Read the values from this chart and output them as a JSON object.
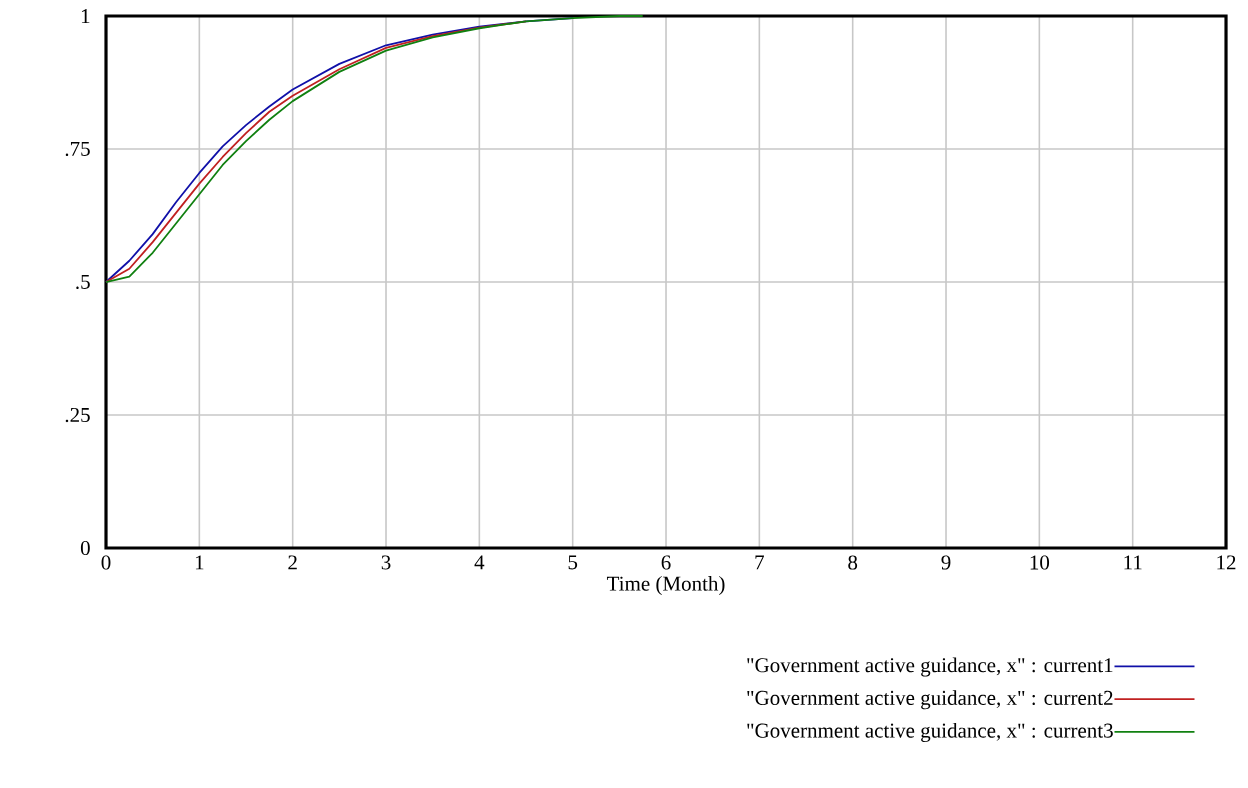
{
  "chart_data": {
    "type": "line",
    "xlabel": "Time (Month)",
    "x": [
      0,
      0.25,
      0.5,
      0.75,
      1,
      1.25,
      1.5,
      1.75,
      2,
      2.5,
      3,
      3.5,
      4,
      4.5,
      5,
      5.5,
      5.75
    ],
    "series": [
      {
        "name": "\"Government active guidance, x\" : current1",
        "color": "#1010a8",
        "values": [
          0.5,
          0.54,
          0.59,
          0.65,
          0.705,
          0.755,
          0.795,
          0.83,
          0.862,
          0.91,
          0.945,
          0.965,
          0.98,
          0.99,
          0.996,
          null,
          null
        ]
      },
      {
        "name": "\"Government active guidance, x\" : current2",
        "color": "#c02020",
        "values": [
          0.5,
          0.525,
          0.575,
          0.63,
          0.685,
          0.735,
          0.78,
          0.82,
          0.85,
          0.9,
          0.94,
          0.962,
          0.978,
          0.99,
          null,
          null,
          null
        ]
      },
      {
        "name": "\"Government active guidance, x\" : current3",
        "color": "#108010",
        "values": [
          0.5,
          0.51,
          0.555,
          0.61,
          0.665,
          0.72,
          0.765,
          0.805,
          0.84,
          0.895,
          0.935,
          0.96,
          0.977,
          0.99,
          0.996,
          1,
          1
        ]
      }
    ],
    "xlim": [
      0,
      12
    ],
    "xticks": [
      0,
      1,
      2,
      3,
      4,
      5,
      6,
      7,
      8,
      9,
      10,
      11,
      12
    ],
    "ylim": [
      0,
      1
    ],
    "yticks": [
      0,
      {
        "value": 0.25,
        "label": ".25"
      },
      {
        "value": 0.5,
        "label": ".5"
      },
      {
        "value": 0.75,
        "label": ".75"
      },
      1
    ],
    "grid": true,
    "legend": "bottom",
    "marker": "none",
    "line_style": "solid"
  }
}
